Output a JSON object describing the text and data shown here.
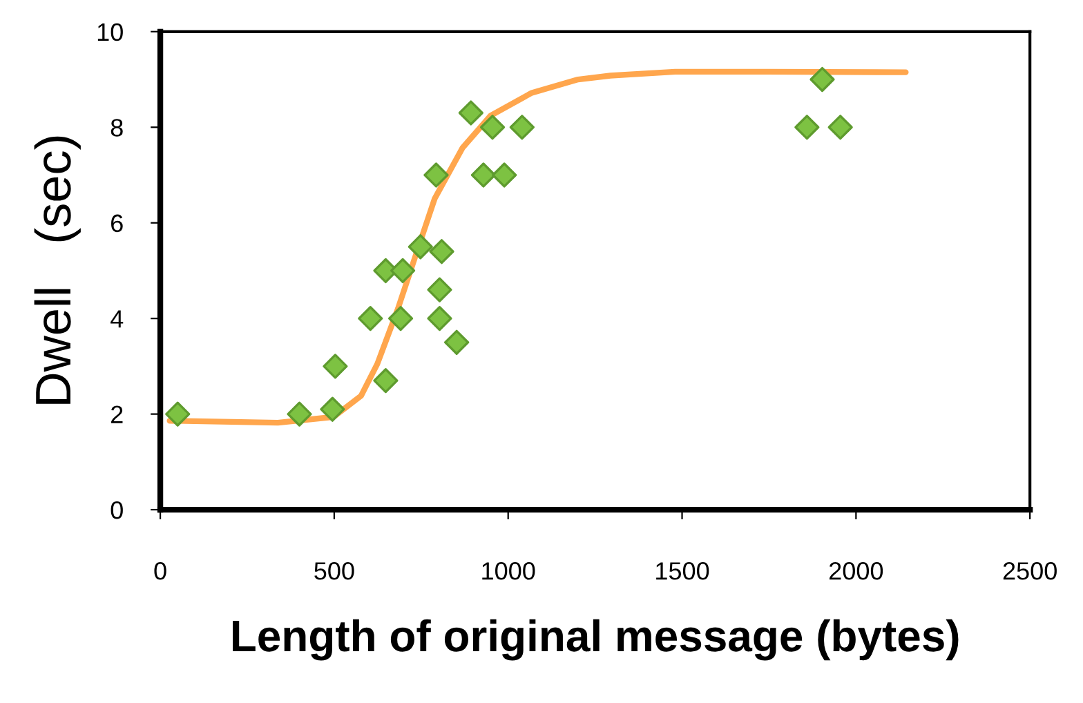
{
  "chart_data": {
    "type": "scatter",
    "xlabel": "Length of original message (bytes)",
    "ylabel": "Dwell   (sec)",
    "xlim": [
      0,
      2500
    ],
    "xticks": [
      0,
      500,
      1000,
      1500,
      2000,
      2500
    ],
    "ylim": [
      0,
      10
    ],
    "yticks": [
      0,
      2,
      4,
      6,
      8,
      10
    ],
    "grid": false,
    "marker": "diamond",
    "series": [
      {
        "color": "#7dc242",
        "x": [
          50,
          400,
          495,
          503,
          604,
          648,
          648,
          697,
          691,
          748,
          809,
          803,
          803,
          852,
          793,
          893,
          955,
          929,
          989,
          1040,
          1903,
          1859,
          1955
        ],
        "values": [
          2.0,
          2.0,
          2.1,
          3.0,
          4.0,
          5.0,
          2.7,
          5.0,
          4.0,
          5.5,
          5.4,
          4.6,
          4.0,
          3.5,
          7.0,
          8.3,
          8.0,
          7.0,
          7.0,
          8.0,
          9.0,
          8.0,
          8.0
        ]
      },
      {
        "type": "line",
        "color": "#ffa64d",
        "marker": "none",
        "line_style": "solid",
        "x": [
          27,
          338,
          498,
          577,
          624,
          683,
          736,
          789,
          869,
          949,
          1068,
          1201,
          1294,
          1480,
          1745,
          2143
        ],
        "values": [
          1.86,
          1.82,
          1.94,
          2.38,
          3.05,
          4.2,
          5.36,
          6.51,
          7.57,
          8.24,
          8.72,
          9.0,
          9.08,
          9.16,
          9.16,
          9.15
        ]
      }
    ]
  }
}
